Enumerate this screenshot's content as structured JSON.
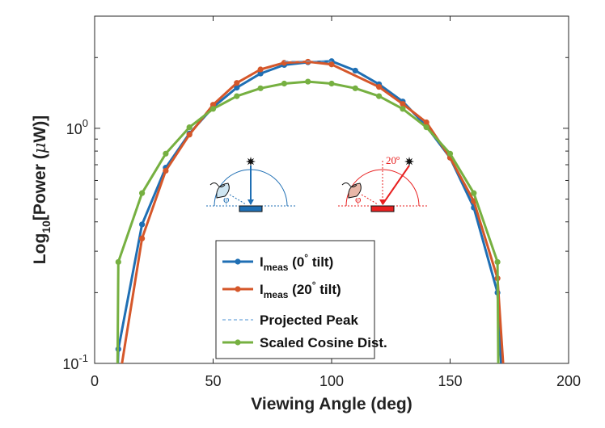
{
  "chart_data": {
    "type": "line",
    "xlabel": "Viewing Angle (deg)",
    "ylabel_parts": {
      "main": "Log",
      "sub": "10",
      "rest": "[Power (",
      "mu": "μ",
      "unit": "W)]"
    },
    "xlim": [
      0,
      200
    ],
    "ylim": [
      0.1,
      3
    ],
    "yscale": "log",
    "x_ticks": [
      0,
      50,
      100,
      150,
      200
    ],
    "y_ticks": [
      {
        "value": 1,
        "base": "10",
        "exp": "0"
      },
      {
        "value": 0.1,
        "base": "10",
        "exp": "-1"
      }
    ],
    "grid": false,
    "legend_position": "bottom-center",
    "series": [
      {
        "name": "I_meas (0° tilt)",
        "color": "#1f6fb4",
        "style": "solid-markers",
        "x": [
          9.5,
          10,
          20,
          30,
          40,
          50,
          60,
          70,
          80,
          90,
          100,
          110,
          120,
          130,
          140,
          150,
          160,
          170,
          172
        ],
        "y": [
          0.08,
          0.115,
          0.39,
          0.68,
          0.95,
          1.23,
          1.49,
          1.71,
          1.86,
          1.91,
          1.93,
          1.76,
          1.54,
          1.3,
          1.02,
          0.75,
          0.46,
          0.2,
          0.08
        ]
      },
      {
        "name": "I_meas (20° tilt)",
        "color": "#d5572a",
        "style": "solid-markers",
        "x": [
          10,
          20,
          30,
          40,
          50,
          60,
          70,
          80,
          90,
          100,
          110,
          120,
          130,
          140,
          150,
          160,
          170,
          173
        ],
        "y": [
          0.08,
          0.34,
          0.66,
          0.94,
          1.26,
          1.56,
          1.78,
          1.9,
          1.92,
          1.87,
          null,
          1.5,
          1.27,
          1.06,
          0.75,
          0.49,
          0.23,
          0.08
        ]
      },
      {
        "name": "Projected Peak",
        "color": "#6fa8dc",
        "style": "dashed",
        "x": [
          80,
          100
        ],
        "y": [
          1.93,
          1.93
        ]
      },
      {
        "name": "Scaled Cosine Dist.",
        "color": "#76b041",
        "style": "solid-markers",
        "x": [
          9.6,
          10,
          20,
          30,
          40,
          50,
          60,
          70,
          80,
          90,
          100,
          110,
          120,
          130,
          140,
          150,
          160,
          170,
          170.4
        ],
        "y": [
          0.08,
          0.27,
          0.53,
          0.78,
          1.01,
          1.21,
          1.37,
          1.48,
          1.55,
          1.58,
          1.55,
          1.48,
          1.37,
          1.21,
          1.01,
          0.78,
          0.53,
          0.27,
          0.08
        ]
      }
    ],
    "legend": [
      {
        "main": "I",
        "sub": "meas",
        "rest": " (0",
        "sup": "°",
        "tail": " tilt)"
      },
      {
        "main": "I",
        "sub": "meas",
        "rest": " (20",
        "sup": "°",
        "tail": " tilt)"
      },
      {
        "main": "Projected Peak",
        "sub": "",
        "rest": "",
        "sup": "",
        "tail": ""
      },
      {
        "main": "Scaled Cosine Dist.",
        "sub": "",
        "rest": "",
        "sup": "",
        "tail": ""
      }
    ],
    "insets": [
      {
        "name": "inset-0deg-tilt",
        "color": "#1f6fb4",
        "symbol": "φ",
        "label": ""
      },
      {
        "name": "inset-20deg-tilt",
        "color": "#e82020",
        "symbol": "φ",
        "label": "20º"
      }
    ]
  }
}
